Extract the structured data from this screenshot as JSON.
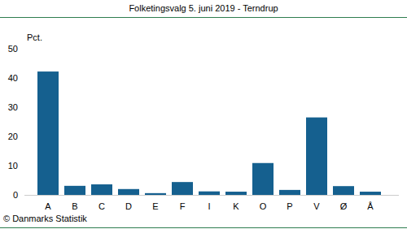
{
  "chart_data": {
    "type": "bar",
    "title": "Folketingsvalg 5. juni 2019 - Terndrup",
    "y_label": "Pct.",
    "source": "© Danmarks Statistik",
    "categories": [
      "A",
      "B",
      "C",
      "D",
      "E",
      "F",
      "I",
      "K",
      "O",
      "P",
      "V",
      "Ø",
      "Å"
    ],
    "values": [
      42.2,
      3.1,
      3.6,
      2.0,
      0.6,
      4.4,
      1.2,
      1.1,
      10.9,
      1.7,
      26.5,
      3.0,
      1.1
    ],
    "color": "#15608f",
    "ylim": [
      0,
      50
    ],
    "yticks": [
      0,
      10,
      20,
      30,
      40,
      50
    ],
    "grid": false
  }
}
